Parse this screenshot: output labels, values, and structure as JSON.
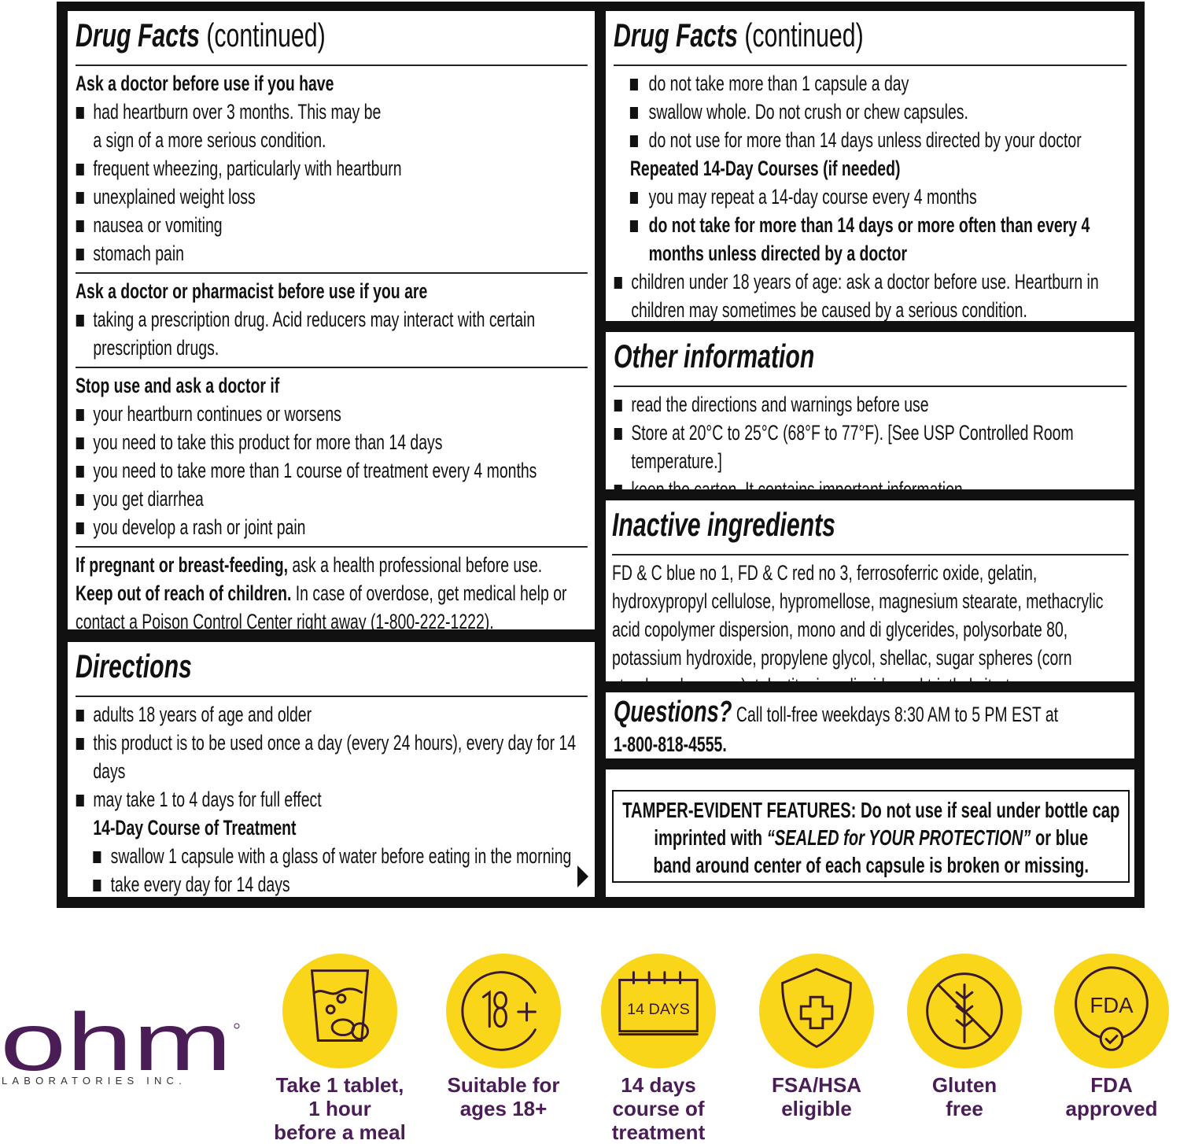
{
  "colors": {
    "frame": "#111111",
    "accent_yellow": "#f9d61a",
    "brand_purple": "#4a1d57"
  },
  "left_top": {
    "title_bold": "Drug Facts",
    "title_rest": " (continued)",
    "lines": [
      {
        "k": "h",
        "t": "Ask a doctor before use if you have"
      },
      {
        "k": "b",
        "t": "had heartburn over 3 months. This may be"
      },
      {
        "k": "c",
        "t": "a sign of a more serious condition."
      },
      {
        "k": "b",
        "t": "frequent wheezing, particularly with heartburn"
      },
      {
        "k": "b",
        "t": "unexplained weight loss"
      },
      {
        "k": "b",
        "t": "nausea or vomiting"
      },
      {
        "k": "b",
        "t": "stomach pain"
      },
      {
        "k": "div"
      },
      {
        "k": "h",
        "t": "Ask a doctor or pharmacist before use if you are"
      },
      {
        "k": "b",
        "t": "taking a prescription drug. Acid reducers may interact with certain"
      },
      {
        "k": "c",
        "t": "prescription drugs."
      },
      {
        "k": "div"
      },
      {
        "k": "h",
        "t": "Stop use and ask a doctor if"
      },
      {
        "k": "b",
        "t": "your heartburn continues or worsens"
      },
      {
        "k": "b",
        "t": "you need to take this product for more than 14 days"
      },
      {
        "k": "b",
        "t": "you need to take more than 1 course of treatment every 4 months"
      },
      {
        "k": "b",
        "t": "you get diarrhea"
      },
      {
        "k": "b",
        "t": "you develop a rash or joint pain"
      },
      {
        "k": "div"
      },
      {
        "k": "p",
        "bold": "If pregnant or breast-feeding,",
        "t": " ask a health professional before use."
      },
      {
        "k": "p",
        "bold": "Keep out of reach of children.",
        "t": " In case of overdose, get medical help or"
      },
      {
        "k": "p",
        "t": "contact a Poison Control Center right away (1-800-222-1222)."
      }
    ]
  },
  "left_bottom": {
    "title_bold": "Directions",
    "title_rest": "",
    "lines": [
      {
        "k": "b",
        "t": "adults 18 years of age and older"
      },
      {
        "k": "b",
        "t": "this product is to be used once a day (every 24 hours), every day for 14"
      },
      {
        "k": "c",
        "t": "days"
      },
      {
        "k": "b",
        "t": "may take 1 to 4 days for full effect"
      },
      {
        "k": "sh",
        "t": "14-Day Course of Treatment"
      },
      {
        "k": "sb",
        "t": "swallow 1 capsule with a glass of water before eating in the morning"
      },
      {
        "k": "sb",
        "t": "take every day for 14 days"
      }
    ],
    "continue_icon": "triangle-right-icon"
  },
  "right_top": {
    "title_bold": "Drug Facts",
    "title_rest": " (continued)",
    "lines": [
      {
        "k": "rb",
        "t": "do not take more than 1 capsule a day"
      },
      {
        "k": "rb",
        "t": "swallow whole. Do not crush or chew capsules."
      },
      {
        "k": "rb",
        "t": "do not use for more than 14 days unless directed by your doctor"
      },
      {
        "k": "rh",
        "t": "Repeated 14-Day Courses (if needed)"
      },
      {
        "k": "rb",
        "t": "you may repeat a 14-day course every 4 months"
      },
      {
        "k": "rbb",
        "t": "do not take for more than 14 days or more often than every 4"
      },
      {
        "k": "rcb",
        "t": "months unless directed by a doctor"
      },
      {
        "k": "b",
        "t": "children under 18 years of age: ask a doctor before use. Heartburn in"
      },
      {
        "k": "c",
        "t": "children may sometimes be caused by a serious condition."
      }
    ]
  },
  "other_info": {
    "title_bold": "Other information",
    "title_rest": "",
    "lines": [
      {
        "k": "b",
        "t": "read the directions and warnings before use"
      },
      {
        "k": "b",
        "t": "Store at 20°C to 25°C (68°F to 77°F). [See USP Controlled Room"
      },
      {
        "k": "c",
        "t": "temperature.]"
      },
      {
        "k": "b",
        "t": "keep the carton. It contains important information."
      }
    ]
  },
  "inactive": {
    "title_bold": "Inactive ingredients",
    "title_rest": "",
    "lines": [
      {
        "k": "p",
        "t": "FD & C blue no 1, FD & C red no 3, ferrosoferric oxide, gelatin,"
      },
      {
        "k": "p",
        "t": "hydroxypropyl cellulose, hypromellose, magnesium stearate, methacrylic"
      },
      {
        "k": "p",
        "t": "acid copolymer dispersion, mono and di glycerides, polysorbate 80,"
      },
      {
        "k": "p",
        "t": "potassium hydroxide, propylene glycol, shellac, sugar spheres (corn"
      },
      {
        "k": "p",
        "t": "starch and sucrose), talc, titanium dioxide and triethyl citrate."
      }
    ]
  },
  "questions": {
    "title_bold": "Questions?",
    "rest": " Call toll-free weekdays 8:30 AM to 5 PM EST at",
    "phone": "1-800-818-4555."
  },
  "tamper": {
    "line1": "TAMPER-EVIDENT FEATURES: Do not use if seal under bottle cap",
    "line2a": "imprinted with ",
    "line2b": "“SEALED for YOUR PROTECTION”",
    "line2c": " or blue",
    "line3": "band around center of each capsule is broken or missing."
  },
  "logo": {
    "name": "ohm",
    "sub": "LABORATORIES INC."
  },
  "badges": [
    {
      "icon": "glass-pill-icon",
      "lines": [
        "Take 1 tablet,",
        "1 hour",
        "before a meal"
      ]
    },
    {
      "icon": "age-18-plus-icon",
      "lines": [
        "Suitable for",
        "ages 18+"
      ]
    },
    {
      "icon": "calendar-14-days-icon",
      "icon_text": "14 DAYS",
      "lines": [
        "14 days",
        "course of",
        "treatment"
      ]
    },
    {
      "icon": "shield-cross-icon",
      "lines": [
        "FSA/HSA",
        "eligible"
      ]
    },
    {
      "icon": "no-gluten-icon",
      "lines": [
        "Gluten",
        "free"
      ]
    },
    {
      "icon": "fda-check-icon",
      "icon_text": "FDA",
      "lines": [
        "FDA",
        "approved"
      ]
    }
  ]
}
